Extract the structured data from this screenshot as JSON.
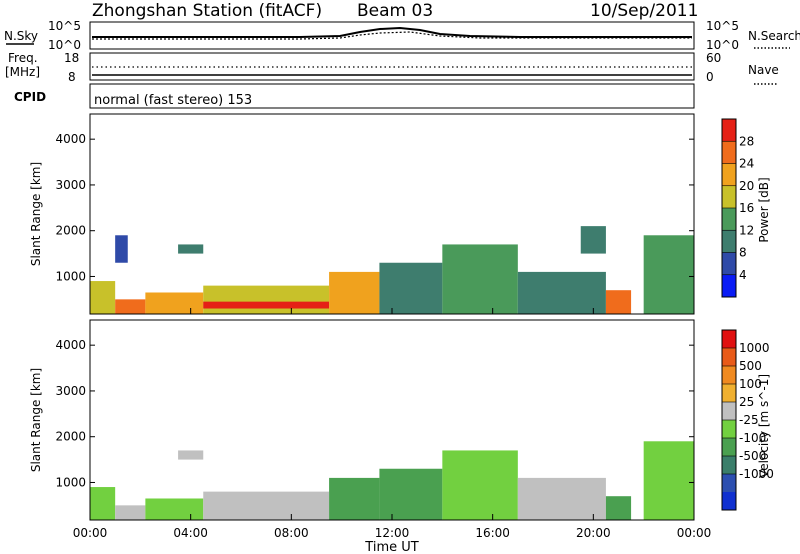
{
  "header": {
    "station": "Zhongshan Station (fitACF)",
    "beam": "Beam 03",
    "date": "10/Sep/2011"
  },
  "top_panels": {
    "nsky": {
      "label": "N.Sky",
      "top_tick": "10^5",
      "bottom_tick": "10^0",
      "right_label": "N.Search",
      "right_top_tick": "10^5",
      "right_bottom_tick": "10^0"
    },
    "freq": {
      "label_line1": "Freq.",
      "label_line2": "[MHz]",
      "top_tick": "18",
      "bottom_tick": "8",
      "right_label": "Nave",
      "right_top_tick": "60",
      "right_bottom_tick": "0"
    },
    "cpid": {
      "label": "CPID",
      "text": "normal (fast stereo) 153"
    }
  },
  "x_axis": {
    "label": "Time UT",
    "ticks": [
      "00:00",
      "04:00",
      "08:00",
      "12:00",
      "16:00",
      "20:00",
      "00:00"
    ]
  },
  "y_axis": {
    "label": "Slant Range [km]",
    "ticks": [
      "1000",
      "2000",
      "3000",
      "4000"
    ]
  },
  "colorbars": {
    "power": {
      "label": "Power [dB]",
      "ticks": [
        "4",
        "8",
        "12",
        "16",
        "20",
        "24",
        "28"
      ],
      "colors": [
        "#0a1cf5",
        "#2f4aa8",
        "#3e7d6e",
        "#4a9a5a",
        "#c8c12a",
        "#f0a21e",
        "#f06c1c",
        "#e52016"
      ]
    },
    "velocity": {
      "label": "Velocity [m s^-1]",
      "ticks": [
        "1000",
        "500",
        "100",
        "25",
        "-25",
        "-100",
        "-500",
        "-1000"
      ],
      "colors": [
        "#1030d0",
        "#2c4fb0",
        "#3a7e6a",
        "#4aa050",
        "#72d040",
        "#c0c0c0",
        "#f0b030",
        "#f08a20",
        "#e85a18",
        "#e01010"
      ]
    }
  },
  "chart_data": [
    {
      "type": "heatmap",
      "title": "Power",
      "xlabel": "Time UT",
      "ylabel": "Slant Range [km]",
      "xlim": [
        "00:00",
        "24:00"
      ],
      "ylim": [
        180,
        4550
      ],
      "colorbar_label": "Power [dB]",
      "value_range": [
        0,
        32
      ],
      "regions": [
        {
          "t_start": 0.0,
          "t_end": 1.0,
          "r_start": 180,
          "r_end": 900,
          "value": 18
        },
        {
          "t_start": 1.0,
          "t_end": 2.2,
          "r_start": 180,
          "r_end": 500,
          "value": 26
        },
        {
          "t_start": 2.2,
          "t_end": 4.5,
          "r_start": 180,
          "r_end": 650,
          "value": 22
        },
        {
          "t_start": 4.5,
          "t_end": 9.5,
          "r_start": 180,
          "r_end": 800,
          "value": 16
        },
        {
          "t_start": 4.5,
          "t_end": 9.5,
          "r_start": 300,
          "r_end": 450,
          "value": 28
        },
        {
          "t_start": 9.5,
          "t_end": 11.5,
          "r_start": 180,
          "r_end": 1100,
          "value": 20
        },
        {
          "t_start": 11.5,
          "t_end": 14.0,
          "r_start": 180,
          "r_end": 1300,
          "value": 10
        },
        {
          "t_start": 14.0,
          "t_end": 17.0,
          "r_start": 180,
          "r_end": 1700,
          "value": 13
        },
        {
          "t_start": 17.0,
          "t_end": 20.5,
          "r_start": 180,
          "r_end": 1100,
          "value": 11
        },
        {
          "t_start": 20.5,
          "t_end": 21.5,
          "r_start": 180,
          "r_end": 700,
          "value": 27
        },
        {
          "t_start": 22.0,
          "t_end": 24.0,
          "r_start": 180,
          "r_end": 1900,
          "value": 12
        },
        {
          "t_start": 1.0,
          "t_end": 1.5,
          "r_start": 1300,
          "r_end": 1900,
          "value": 7
        },
        {
          "t_start": 3.5,
          "t_end": 4.5,
          "r_start": 1500,
          "r_end": 1700,
          "value": 9
        },
        {
          "t_start": 19.5,
          "t_end": 20.5,
          "r_start": 1500,
          "r_end": 2100,
          "value": 9
        }
      ]
    },
    {
      "type": "heatmap",
      "title": "Velocity",
      "xlabel": "Time UT",
      "ylabel": "Slant Range [km]",
      "xlim": [
        "00:00",
        "24:00"
      ],
      "ylim": [
        180,
        4550
      ],
      "colorbar_label": "Velocity [m s^-1]",
      "value_range": [
        -1000,
        1000
      ],
      "regions": [
        {
          "t_start": 0.0,
          "t_end": 1.0,
          "r_start": 180,
          "r_end": 900,
          "value": -150
        },
        {
          "t_start": 1.0,
          "t_end": 2.2,
          "r_start": 180,
          "r_end": 500,
          "value": 120
        },
        {
          "t_start": 2.2,
          "t_end": 4.5,
          "r_start": 180,
          "r_end": 650,
          "value": -200
        },
        {
          "t_start": 4.5,
          "t_end": 9.5,
          "r_start": 180,
          "r_end": 800,
          "value": 110
        },
        {
          "t_start": 9.5,
          "t_end": 11.5,
          "r_start": 180,
          "r_end": 1100,
          "value": -300
        },
        {
          "t_start": 11.5,
          "t_end": 14.0,
          "r_start": 180,
          "r_end": 1300,
          "value": -250
        },
        {
          "t_start": 14.0,
          "t_end": 17.0,
          "r_start": 180,
          "r_end": 1700,
          "value": -150
        },
        {
          "t_start": 17.0,
          "t_end": 20.5,
          "r_start": 180,
          "r_end": 1100,
          "value": 80
        },
        {
          "t_start": 20.5,
          "t_end": 21.5,
          "r_start": 180,
          "r_end": 700,
          "value": -300
        },
        {
          "t_start": 22.0,
          "t_end": 24.0,
          "r_start": 180,
          "r_end": 1900,
          "value": -200
        },
        {
          "t_start": 3.5,
          "t_end": 4.5,
          "r_start": 1500,
          "r_end": 1700,
          "value": 0
        }
      ]
    }
  ]
}
